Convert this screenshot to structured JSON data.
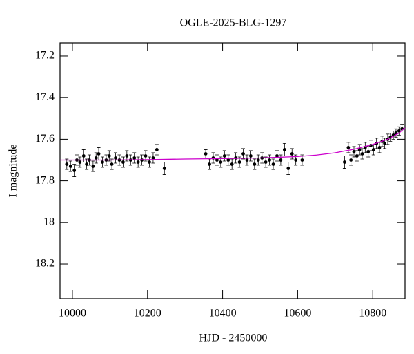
{
  "chart_data": {
    "type": "scatter",
    "title": "OGLE-2025-BLG-1297",
    "x_label": "HJD - 2450000",
    "y_label": "I magnitude",
    "xlim": [
      9967,
      10886
    ],
    "ylim": [
      17.137,
      18.366
    ],
    "y_inverted": true,
    "xticks": [
      10000,
      10200,
      10400,
      10600,
      10800
    ],
    "yticks": [
      17.2,
      17.4,
      17.6,
      17.8,
      18,
      18.2
    ],
    "series": [
      {
        "color": "#000000",
        "x": [
          9985,
          9995,
          10005,
          10012,
          10020,
          10030,
          10038,
          10045,
          10055,
          10063,
          10070,
          10080,
          10090,
          10098,
          10105,
          10115,
          10125,
          10135,
          10145,
          10155,
          10165,
          10175,
          10185,
          10195,
          10205,
          10215,
          10225,
          10245,
          10355,
          10365,
          10375,
          10385,
          10395,
          10405,
          10415,
          10425,
          10435,
          10445,
          10455,
          10465,
          10475,
          10485,
          10495,
          10505,
          10515,
          10525,
          10535,
          10545,
          10555,
          10565,
          10575,
          10585,
          10595,
          10612,
          10725,
          10735,
          10742,
          10750,
          10758,
          10765,
          10772,
          10780,
          10788,
          10795,
          10802,
          10810,
          10818,
          10825,
          10832,
          10840,
          10847,
          10855,
          10862,
          10870,
          10878
        ],
        "values": [
          17.72,
          17.73,
          17.75,
          17.7,
          17.71,
          17.68,
          17.72,
          17.7,
          17.73,
          17.69,
          17.67,
          17.71,
          17.7,
          17.68,
          17.72,
          17.69,
          17.7,
          17.71,
          17.68,
          17.7,
          17.69,
          17.71,
          17.7,
          17.68,
          17.71,
          17.69,
          17.65,
          17.74,
          17.67,
          17.72,
          17.69,
          17.7,
          17.71,
          17.68,
          17.7,
          17.72,
          17.69,
          17.71,
          17.67,
          17.7,
          17.68,
          17.72,
          17.7,
          17.69,
          17.71,
          17.7,
          17.72,
          17.68,
          17.7,
          17.65,
          17.74,
          17.67,
          17.7,
          17.7,
          17.71,
          17.64,
          17.7,
          17.66,
          17.68,
          17.65,
          17.67,
          17.64,
          17.66,
          17.63,
          17.65,
          17.62,
          17.64,
          17.61,
          17.62,
          17.6,
          17.59,
          17.58,
          17.57,
          17.56,
          17.55
        ],
        "errors": [
          0.025,
          0.025,
          0.03,
          0.025,
          0.025,
          0.03,
          0.025,
          0.025,
          0.025,
          0.025,
          0.03,
          0.025,
          0.025,
          0.025,
          0.025,
          0.025,
          0.025,
          0.025,
          0.025,
          0.025,
          0.025,
          0.025,
          0.025,
          0.025,
          0.025,
          0.025,
          0.025,
          0.03,
          0.02,
          0.025,
          0.025,
          0.025,
          0.025,
          0.025,
          0.025,
          0.025,
          0.025,
          0.025,
          0.025,
          0.025,
          0.025,
          0.025,
          0.025,
          0.025,
          0.025,
          0.025,
          0.025,
          0.025,
          0.025,
          0.03,
          0.03,
          0.025,
          0.025,
          0.025,
          0.03,
          0.025,
          0.025,
          0.025,
          0.025,
          0.025,
          0.025,
          0.025,
          0.025,
          0.025,
          0.025,
          0.025,
          0.025,
          0.025,
          0.025,
          0.025,
          0.02,
          0.02,
          0.02,
          0.02,
          0.02
        ]
      }
    ],
    "model": {
      "color": "#cc00cc",
      "x": [
        9967,
        10100,
        10200,
        10300,
        10400,
        10500,
        10600,
        10650,
        10700,
        10750,
        10800,
        10840,
        10870,
        10886
      ],
      "values": [
        17.7,
        17.7,
        17.698,
        17.695,
        17.693,
        17.69,
        17.683,
        17.676,
        17.665,
        17.648,
        17.625,
        17.6,
        17.57,
        17.545
      ]
    }
  }
}
